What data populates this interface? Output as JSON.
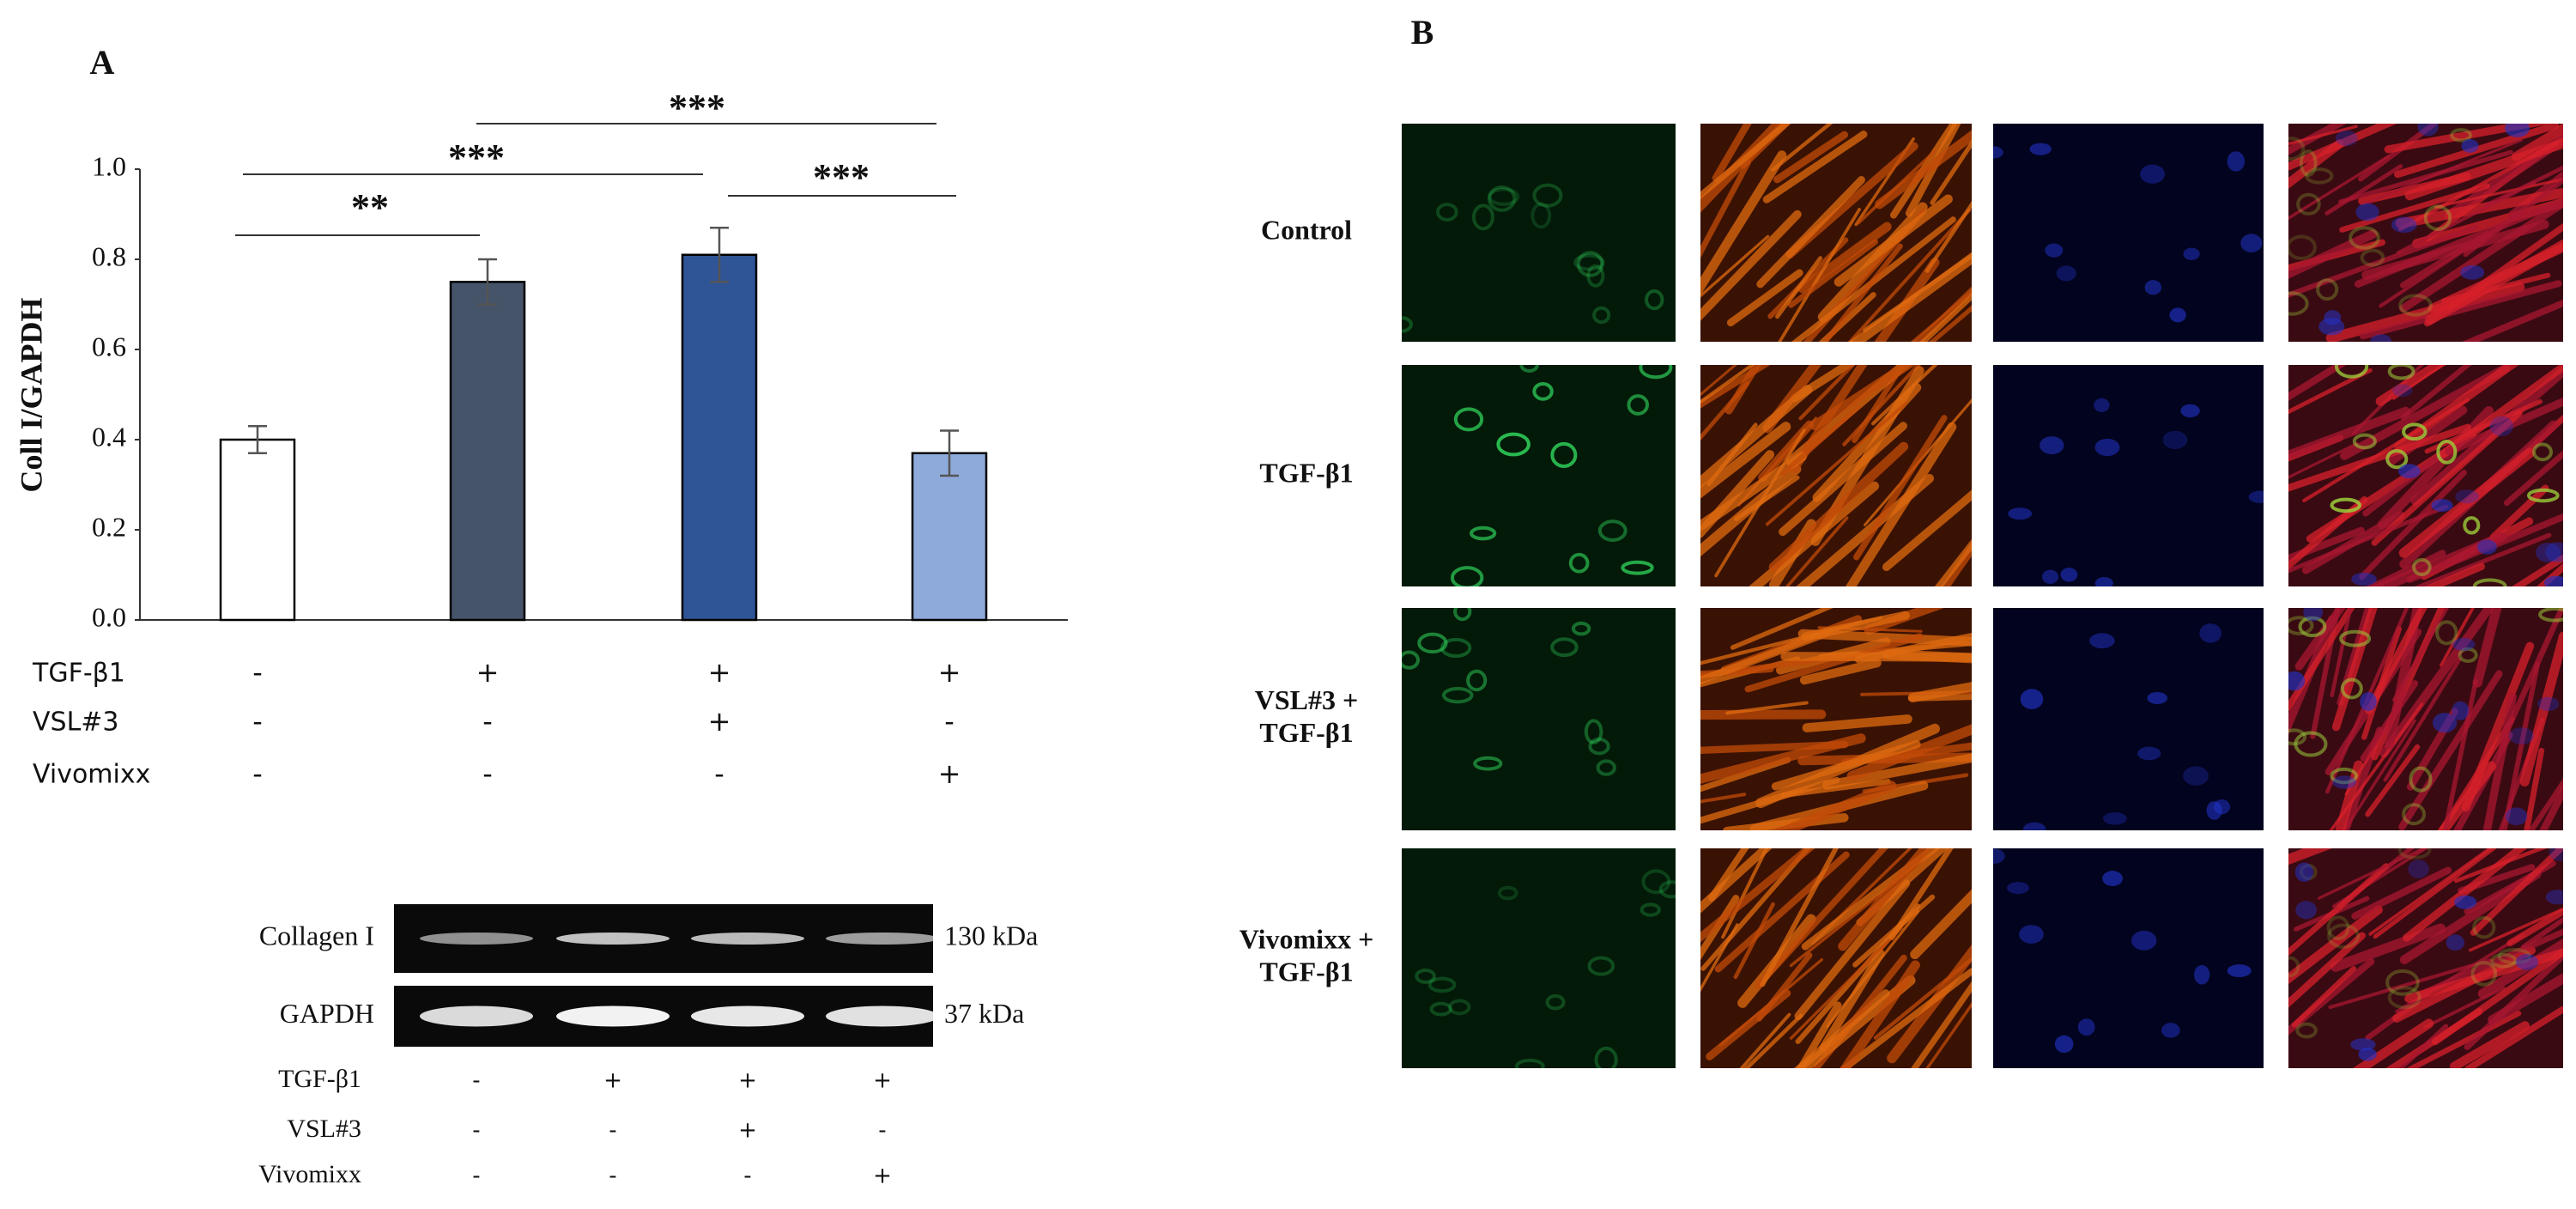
{
  "panel_a": {
    "label": "A"
  },
  "chart_data": {
    "type": "bar",
    "ylabel": "Coll I/GAPDH",
    "categories": [
      null,
      null,
      null,
      null
    ],
    "series": [
      {
        "values": [
          0.4,
          0.75,
          0.81,
          0.37
        ],
        "errors": [
          0.03,
          0.05,
          0.06,
          0.05
        ],
        "colors": [
          "#ffffff",
          "#46546a",
          "#2f5597",
          "#8eaadb"
        ]
      }
    ],
    "ylim": [
      0,
      1
    ],
    "yticks": [
      {
        "value": 0,
        "label": "0.0"
      },
      0.2,
      0.4,
      0.6,
      0.8,
      {
        "value": 1,
        "label": "1.0"
      }
    ],
    "grid": false,
    "annotations": [
      "**",
      "***",
      "***",
      "***"
    ]
  },
  "treatment_table": {
    "rows": [
      {
        "label": "TGF-β1",
        "signs": [
          "-",
          "+",
          "+",
          "+"
        ]
      },
      {
        "label": "VSL#3",
        "signs": [
          "-",
          "-",
          "+",
          "-"
        ]
      },
      {
        "label": "Vivomixx",
        "signs": [
          "-",
          "-",
          "-",
          "+"
        ]
      }
    ]
  },
  "blot": {
    "bands": [
      {
        "label": "Collagen I",
        "size": "130 kDa"
      },
      {
        "label": "GAPDH",
        "size": "37 kDa"
      }
    ],
    "rows": [
      {
        "label": "TGF-β1",
        "signs": [
          "-",
          "+",
          "+",
          "+"
        ]
      },
      {
        "label": "VSL#3",
        "signs": [
          "-",
          "-",
          "+",
          "-"
        ]
      },
      {
        "label": "Vivomixx",
        "signs": [
          "-",
          "-",
          "-",
          "+"
        ]
      }
    ]
  },
  "panel_b": {
    "label": "B",
    "rows": [
      {
        "lines": [
          "Control"
        ]
      },
      {
        "lines": [
          "TGF-β1"
        ]
      },
      {
        "lines": [
          "VSL#3 +",
          "TGF-β1"
        ]
      },
      {
        "lines": [
          "Vivomixx +",
          "TGF-β1"
        ]
      }
    ]
  }
}
